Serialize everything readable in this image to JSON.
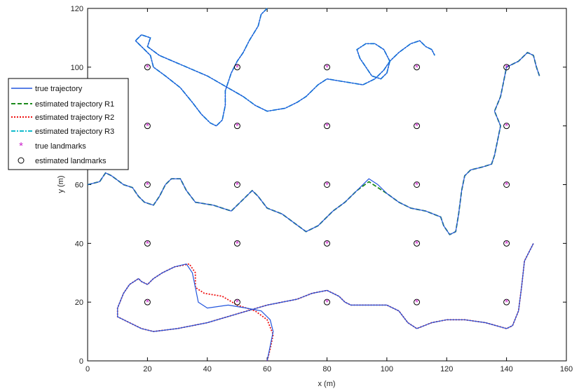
{
  "chart_data": {
    "type": "line",
    "xlabel": "x (m)",
    "ylabel": "y (m)",
    "xlim": [
      0,
      160
    ],
    "ylim": [
      0,
      120
    ],
    "xticks": [
      0,
      20,
      40,
      60,
      80,
      100,
      120,
      140,
      160
    ],
    "yticks": [
      0,
      20,
      40,
      60,
      80,
      100,
      120
    ],
    "grid": false,
    "legend_position": "left, overlapping the axes",
    "legend": [
      {
        "label": "true trajectory",
        "color": "#2255dd",
        "style": "solid"
      },
      {
        "label": "estimated trajectory R1",
        "color": "#1a8a1a",
        "style": "dashed"
      },
      {
        "label": "estimated trajectory R2",
        "color": "#ee1111",
        "style": "dotted"
      },
      {
        "label": "estimated trajectory R3",
        "color": "#11bbcc",
        "style": "dashdot"
      },
      {
        "label": "true landmarks",
        "color": "#cc22cc",
        "marker": "*"
      },
      {
        "label": "estimated landmarks",
        "color": "#000000",
        "marker": "o"
      }
    ],
    "landmarks": {
      "x": [
        20,
        50,
        80,
        110,
        140
      ],
      "y": [
        20,
        40,
        60,
        80,
        100
      ]
    },
    "series": [
      {
        "robot": "R1",
        "true": [
          [
            0,
            60
          ],
          [
            4,
            61
          ],
          [
            6,
            64
          ],
          [
            8,
            63
          ],
          [
            12,
            60
          ],
          [
            15,
            59
          ],
          [
            17,
            56
          ],
          [
            19,
            54
          ],
          [
            22,
            53
          ],
          [
            24,
            56
          ],
          [
            26,
            60
          ],
          [
            28,
            62
          ],
          [
            31,
            62
          ],
          [
            33,
            58
          ],
          [
            36,
            54
          ],
          [
            42,
            53
          ],
          [
            48,
            51
          ],
          [
            52,
            55
          ],
          [
            55,
            58
          ],
          [
            57,
            56
          ],
          [
            60,
            52
          ],
          [
            65,
            50
          ],
          [
            69,
            47
          ],
          [
            73,
            44
          ],
          [
            77,
            46
          ],
          [
            82,
            51
          ],
          [
            86,
            54
          ],
          [
            90,
            58
          ],
          [
            94,
            62
          ],
          [
            97,
            60
          ],
          [
            100,
            57
          ],
          [
            104,
            54
          ],
          [
            108,
            52
          ],
          [
            113,
            51
          ],
          [
            118,
            49
          ],
          [
            119,
            46
          ],
          [
            121,
            43
          ],
          [
            123,
            44
          ],
          [
            124,
            50
          ],
          [
            125,
            58
          ],
          [
            126,
            63
          ],
          [
            128,
            65
          ],
          [
            132,
            66
          ],
          [
            135,
            67
          ],
          [
            136,
            70
          ],
          [
            137,
            75
          ],
          [
            138,
            80
          ],
          [
            136,
            85
          ],
          [
            138,
            90
          ],
          [
            139,
            95
          ],
          [
            140,
            100
          ],
          [
            144,
            102
          ],
          [
            147,
            105
          ],
          [
            149,
            104
          ],
          [
            150,
            100
          ],
          [
            151,
            97
          ]
        ],
        "estimated": [
          [
            0,
            60
          ],
          [
            4,
            61
          ],
          [
            6,
            64
          ],
          [
            8,
            63
          ],
          [
            12,
            60
          ],
          [
            15,
            59
          ],
          [
            17,
            56
          ],
          [
            19,
            54
          ],
          [
            22,
            53
          ],
          [
            24,
            56
          ],
          [
            26,
            60
          ],
          [
            28,
            62
          ],
          [
            31,
            62
          ],
          [
            33,
            58
          ],
          [
            36,
            54
          ],
          [
            42,
            53
          ],
          [
            48,
            51
          ],
          [
            52,
            55
          ],
          [
            55,
            58
          ],
          [
            57,
            56
          ],
          [
            60,
            52
          ],
          [
            65,
            50
          ],
          [
            69,
            47
          ],
          [
            73,
            44
          ],
          [
            77,
            46
          ],
          [
            82,
            51
          ],
          [
            86,
            54
          ],
          [
            90,
            58
          ],
          [
            94,
            61
          ],
          [
            97,
            59
          ],
          [
            100,
            57
          ],
          [
            104,
            54
          ],
          [
            108,
            52
          ],
          [
            113,
            51
          ],
          [
            118,
            49
          ],
          [
            119,
            46
          ],
          [
            121,
            43
          ],
          [
            123,
            44
          ],
          [
            124,
            50
          ],
          [
            125,
            58
          ],
          [
            126,
            63
          ],
          [
            128,
            65
          ],
          [
            132,
            66
          ],
          [
            135,
            67
          ],
          [
            136,
            70
          ],
          [
            137,
            75
          ],
          [
            138,
            80
          ],
          [
            136,
            85
          ],
          [
            138,
            90
          ],
          [
            139,
            95
          ],
          [
            140,
            100
          ],
          [
            144,
            102
          ],
          [
            147,
            105
          ],
          [
            149,
            104
          ],
          [
            150,
            100
          ],
          [
            151,
            97
          ]
        ]
      },
      {
        "robot": "R2",
        "true": [
          [
            60,
            0
          ],
          [
            61,
            5
          ],
          [
            62,
            10
          ],
          [
            61,
            14
          ],
          [
            58,
            17
          ],
          [
            53,
            18
          ],
          [
            47,
            19
          ],
          [
            40,
            18
          ],
          [
            37,
            20
          ],
          [
            36,
            25
          ],
          [
            35,
            30
          ],
          [
            33,
            33
          ],
          [
            29,
            32
          ],
          [
            25,
            30
          ],
          [
            22,
            28
          ],
          [
            20,
            26
          ],
          [
            18,
            27
          ],
          [
            17,
            28
          ],
          [
            14,
            26
          ],
          [
            12,
            23
          ],
          [
            10,
            18
          ],
          [
            10,
            15
          ],
          [
            14,
            13
          ],
          [
            18,
            11
          ],
          [
            22,
            10
          ],
          [
            30,
            11
          ],
          [
            40,
            13
          ],
          [
            50,
            16
          ],
          [
            60,
            19
          ],
          [
            70,
            21
          ],
          [
            75,
            23
          ],
          [
            80,
            24
          ],
          [
            84,
            22
          ],
          [
            86,
            20
          ],
          [
            88,
            19
          ],
          [
            92,
            19
          ],
          [
            100,
            19
          ],
          [
            104,
            17
          ],
          [
            107,
            13
          ],
          [
            110,
            11
          ],
          [
            115,
            13
          ],
          [
            120,
            14
          ],
          [
            126,
            14
          ],
          [
            133,
            13
          ],
          [
            140,
            11
          ],
          [
            142,
            12
          ],
          [
            144,
            17
          ],
          [
            145,
            25
          ],
          [
            146,
            34
          ],
          [
            149,
            40
          ]
        ],
        "estimated": [
          [
            60,
            0
          ],
          [
            61,
            4
          ],
          [
            62,
            9
          ],
          [
            60,
            14
          ],
          [
            56,
            17
          ],
          [
            50,
            19
          ],
          [
            45,
            22
          ],
          [
            39,
            23
          ],
          [
            36,
            25
          ],
          [
            36,
            30
          ],
          [
            34,
            33
          ],
          [
            29,
            32
          ],
          [
            25,
            30
          ],
          [
            22,
            28
          ],
          [
            20,
            26
          ],
          [
            18,
            27
          ],
          [
            17,
            28
          ],
          [
            14,
            26
          ],
          [
            12,
            23
          ],
          [
            10,
            18
          ],
          [
            10,
            15
          ],
          [
            14,
            13
          ],
          [
            18,
            11
          ],
          [
            22,
            10
          ],
          [
            30,
            11
          ],
          [
            40,
            13
          ],
          [
            50,
            16
          ],
          [
            60,
            19
          ],
          [
            70,
            21
          ],
          [
            75,
            23
          ],
          [
            80,
            24
          ],
          [
            84,
            22
          ],
          [
            86,
            20
          ],
          [
            88,
            19
          ],
          [
            92,
            19
          ],
          [
            100,
            19
          ],
          [
            104,
            17
          ],
          [
            107,
            13
          ],
          [
            110,
            11
          ],
          [
            115,
            13
          ],
          [
            120,
            14
          ],
          [
            126,
            14
          ],
          [
            133,
            13
          ],
          [
            140,
            11
          ],
          [
            142,
            12
          ],
          [
            144,
            17
          ],
          [
            145,
            25
          ],
          [
            146,
            34
          ],
          [
            149,
            40
          ]
        ]
      },
      {
        "robot": "R3",
        "true": [
          [
            60,
            120
          ],
          [
            58,
            118
          ],
          [
            57,
            114
          ],
          [
            54,
            109
          ],
          [
            52,
            105
          ],
          [
            50,
            102
          ],
          [
            48,
            98
          ],
          [
            46,
            92
          ],
          [
            46,
            87
          ],
          [
            45,
            82
          ],
          [
            43,
            80
          ],
          [
            41,
            81
          ],
          [
            38,
            84
          ],
          [
            35,
            88
          ],
          [
            31,
            93
          ],
          [
            26,
            97
          ],
          [
            22,
            100
          ],
          [
            21,
            104
          ],
          [
            19,
            106
          ],
          [
            17,
            108
          ],
          [
            16,
            109
          ],
          [
            18,
            111
          ],
          [
            21,
            110
          ],
          [
            20,
            107
          ],
          [
            24,
            104
          ],
          [
            40,
            97
          ],
          [
            52,
            90
          ],
          [
            56,
            87
          ],
          [
            60,
            85
          ],
          [
            66,
            86
          ],
          [
            70,
            88
          ],
          [
            73,
            90
          ],
          [
            77,
            94
          ],
          [
            80,
            96
          ],
          [
            86,
            95
          ],
          [
            92,
            94
          ],
          [
            96,
            96
          ],
          [
            99,
            99
          ],
          [
            101,
            102
          ],
          [
            104,
            105
          ],
          [
            108,
            108
          ],
          [
            111,
            109
          ],
          [
            113,
            107
          ],
          [
            115,
            106
          ],
          [
            116,
            104
          ]
        ],
        "estimated": [
          [
            60,
            120
          ],
          [
            58,
            118
          ],
          [
            57,
            114
          ],
          [
            54,
            109
          ],
          [
            52,
            105
          ],
          [
            50,
            102
          ],
          [
            48,
            98
          ],
          [
            46,
            92
          ],
          [
            46,
            87
          ],
          [
            45,
            82
          ],
          [
            43,
            80
          ],
          [
            41,
            81
          ],
          [
            38,
            84
          ],
          [
            35,
            88
          ],
          [
            31,
            93
          ],
          [
            26,
            97
          ],
          [
            22,
            100
          ],
          [
            21,
            104
          ],
          [
            19,
            106
          ],
          [
            17,
            108
          ],
          [
            16,
            109
          ],
          [
            18,
            111
          ],
          [
            21,
            110
          ],
          [
            20,
            107
          ],
          [
            24,
            104
          ],
          [
            40,
            97
          ],
          [
            52,
            90
          ],
          [
            56,
            87
          ],
          [
            60,
            85
          ],
          [
            66,
            86
          ],
          [
            70,
            88
          ],
          [
            73,
            90
          ],
          [
            77,
            94
          ],
          [
            80,
            96
          ],
          [
            86,
            95
          ],
          [
            92,
            94
          ],
          [
            96,
            96
          ],
          [
            99,
            99
          ],
          [
            101,
            102
          ],
          [
            104,
            105
          ],
          [
            108,
            108
          ],
          [
            111,
            109
          ],
          [
            113,
            107
          ],
          [
            115,
            106
          ],
          [
            116,
            104
          ]
        ]
      }
    ],
    "loop": {
      "robot": "R3",
      "points": [
        [
          101,
          102
        ],
        [
          100,
          98
        ],
        [
          98,
          96
        ],
        [
          95,
          97
        ],
        [
          93,
          100
        ],
        [
          91,
          103
        ],
        [
          90,
          106
        ],
        [
          93,
          108
        ],
        [
          96,
          108
        ],
        [
          99,
          106
        ],
        [
          101,
          102
        ]
      ]
    }
  }
}
